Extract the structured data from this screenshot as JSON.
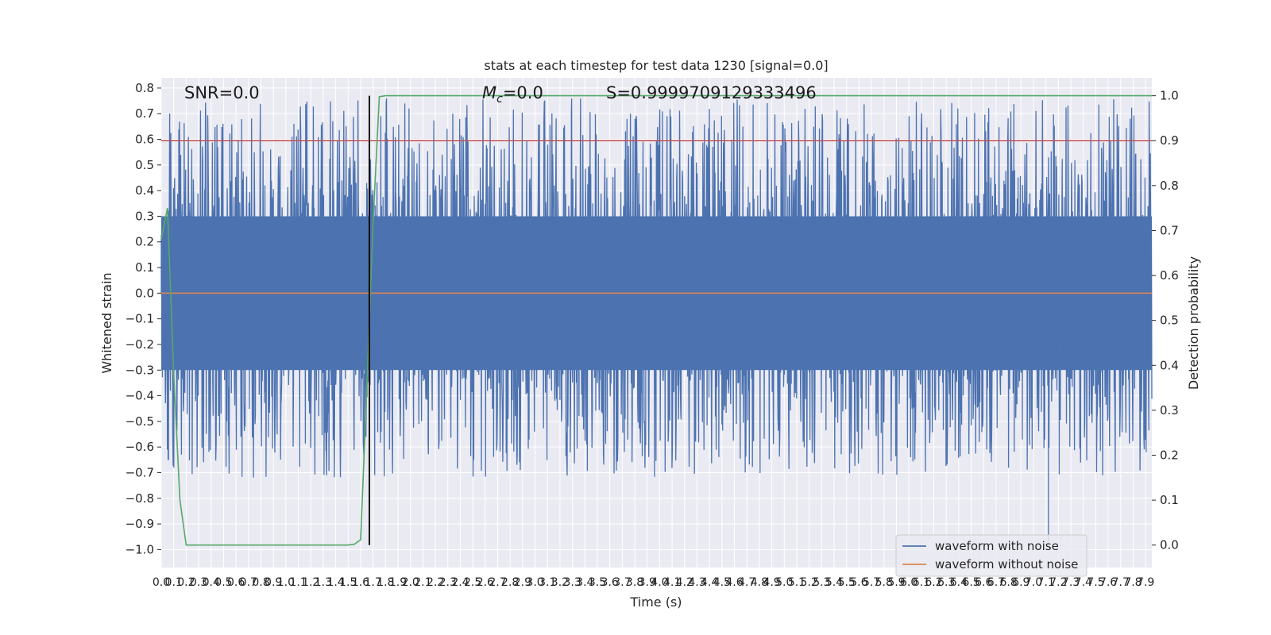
{
  "chart_data": {
    "type": "line",
    "title": "stats at each timestep for test data 1230 [signal=0.0]",
    "xlabel": "Time (s)",
    "ylabel": "Whitened strain",
    "y2label": "Detection probability",
    "xlim": [
      0.0,
      7.95
    ],
    "ylim": [
      -1.07,
      0.84
    ],
    "y2lim": [
      -0.05,
      1.04
    ],
    "x_ticks": [
      "0.0",
      "0.1",
      "0.2",
      "0.3",
      "0.4",
      "0.5",
      "0.6",
      "0.7",
      "0.8",
      "0.9",
      "1.0",
      "1.1",
      "1.2",
      "1.3",
      "1.4",
      "1.5",
      "1.6",
      "1.7",
      "1.8",
      "1.9",
      "2.0",
      "2.1",
      "2.2",
      "2.3",
      "2.4",
      "2.5",
      "2.6",
      "2.7",
      "2.8",
      "2.9",
      "3.0",
      "3.1",
      "3.2",
      "3.3",
      "3.4",
      "3.5",
      "3.6",
      "3.7",
      "3.8",
      "3.9",
      "4.0",
      "4.1",
      "4.2",
      "4.3",
      "4.4",
      "4.5",
      "4.6",
      "4.7",
      "4.8",
      "4.9",
      "5.0",
      "5.1",
      "5.2",
      "5.3",
      "5.4",
      "5.5",
      "5.6",
      "5.7",
      "5.8",
      "5.9",
      "6.0",
      "6.1",
      "6.2",
      "6.3",
      "6.4",
      "6.5",
      "6.6",
      "6.7",
      "6.8",
      "6.9",
      "7.0",
      "7.1",
      "7.2",
      "7.3",
      "7.4",
      "7.5",
      "7.6",
      "7.7",
      "7.8",
      "7.9"
    ],
    "y_ticks": [
      "-1.0",
      "-0.9",
      "-0.8",
      "-0.7",
      "-0.6",
      "-0.5",
      "-0.4",
      "-0.3",
      "-0.2",
      "-0.1",
      "0.0",
      "0.1",
      "0.2",
      "0.3",
      "0.4",
      "0.5",
      "0.6",
      "0.7",
      "0.8"
    ],
    "y2_ticks": [
      "0.0",
      "0.1",
      "0.2",
      "0.3",
      "0.4",
      "0.5",
      "0.6",
      "0.7",
      "0.8",
      "0.9",
      "1.0"
    ],
    "annotations": {
      "snr": "SNR=0.0",
      "mc_symbol": "M",
      "mc_sub": "c",
      "mc_value": "=0.0",
      "score": "S=0.9999709129333496"
    },
    "threshold_y2": 0.9,
    "marker_x": 1.67,
    "series": [
      {
        "name": "waveform with noise",
        "color": "#4c72b0",
        "envelope_upper": 0.3,
        "envelope_lower": -0.3,
        "peak_max": 0.76,
        "peak_min": -0.98
      },
      {
        "name": "waveform without noise",
        "color": "#dd8452",
        "constant": 0.0
      }
    ],
    "detection_curve": {
      "color": "#55a868",
      "x": [
        0.0,
        0.05,
        0.1,
        0.15,
        0.2,
        0.3,
        1.0,
        1.5,
        1.55,
        1.6,
        1.65,
        1.7,
        1.75,
        1.8,
        7.95
      ],
      "y": [
        0.68,
        0.75,
        0.38,
        0.1,
        0.0,
        0.0,
        0.0,
        0.0,
        0.002,
        0.012,
        0.35,
        0.72,
        0.998,
        1.0,
        1.0
      ]
    },
    "threshold_color": "#c44e52",
    "grid": true,
    "legend_position": "lower-right"
  }
}
